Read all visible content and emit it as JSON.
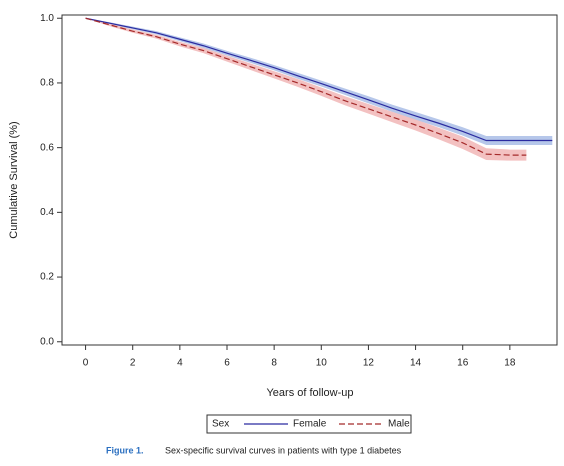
{
  "chart_data": {
    "type": "line",
    "x_label": "Years of follow-up",
    "y_label": "Cumulative Survival (%)",
    "legend_title": "Sex",
    "caption_label": "Figure 1.",
    "caption_text": "Sex-specific survival curves in patients with type 1 diabetes",
    "xlim": [
      -1,
      20
    ],
    "ylim": [
      -0.01,
      1.01
    ],
    "xticks": [
      0,
      2,
      4,
      6,
      8,
      10,
      12,
      14,
      16,
      18
    ],
    "yticks": [
      {
        "value": 0,
        "label": "0.0"
      },
      0.2,
      0.4,
      0.6,
      0.8,
      {
        "value": 1,
        "label": "1.0"
      }
    ],
    "series": [
      {
        "name": "Female",
        "color": "#2b2ba0",
        "band_color": "#a9bde6",
        "dash": false,
        "x": [
          0,
          1,
          2,
          3,
          4,
          5,
          6,
          7,
          8,
          9,
          10,
          11,
          12,
          13,
          14,
          15,
          16,
          17,
          18,
          19.8
        ],
        "values": [
          1.0,
          0.985,
          0.97,
          0.955,
          0.935,
          0.915,
          0.892,
          0.87,
          0.847,
          0.822,
          0.798,
          0.773,
          0.748,
          0.722,
          0.698,
          0.675,
          0.65,
          0.622,
          0.622,
          0.622
        ],
        "lower": [
          1.0,
          0.982,
          0.966,
          0.95,
          0.929,
          0.908,
          0.885,
          0.862,
          0.839,
          0.813,
          0.789,
          0.763,
          0.737,
          0.711,
          0.686,
          0.663,
          0.637,
          0.608,
          0.608,
          0.608
        ],
        "upper": [
          1.0,
          0.988,
          0.974,
          0.96,
          0.941,
          0.922,
          0.899,
          0.878,
          0.855,
          0.831,
          0.807,
          0.783,
          0.759,
          0.733,
          0.71,
          0.687,
          0.663,
          0.636,
          0.636,
          0.636
        ]
      },
      {
        "name": "Male",
        "color": "#a52a2a",
        "band_color": "#f1b6b6",
        "dash": true,
        "x": [
          0,
          1,
          2,
          3,
          4,
          5,
          6,
          7,
          8,
          9,
          10,
          11,
          12,
          13,
          14,
          15,
          16,
          17,
          18,
          18.7
        ],
        "values": [
          1.0,
          0.98,
          0.96,
          0.943,
          0.92,
          0.9,
          0.875,
          0.85,
          0.825,
          0.8,
          0.773,
          0.745,
          0.72,
          0.695,
          0.67,
          0.643,
          0.615,
          0.58,
          0.577,
          0.577
        ],
        "lower": [
          1.0,
          0.976,
          0.955,
          0.937,
          0.913,
          0.892,
          0.866,
          0.84,
          0.814,
          0.788,
          0.76,
          0.731,
          0.705,
          0.679,
          0.653,
          0.625,
          0.596,
          0.562,
          0.56,
          0.56
        ],
        "upper": [
          1.0,
          0.984,
          0.965,
          0.949,
          0.927,
          0.908,
          0.884,
          0.86,
          0.836,
          0.812,
          0.786,
          0.759,
          0.735,
          0.711,
          0.687,
          0.661,
          0.634,
          0.598,
          0.594,
          0.594
        ]
      }
    ]
  }
}
